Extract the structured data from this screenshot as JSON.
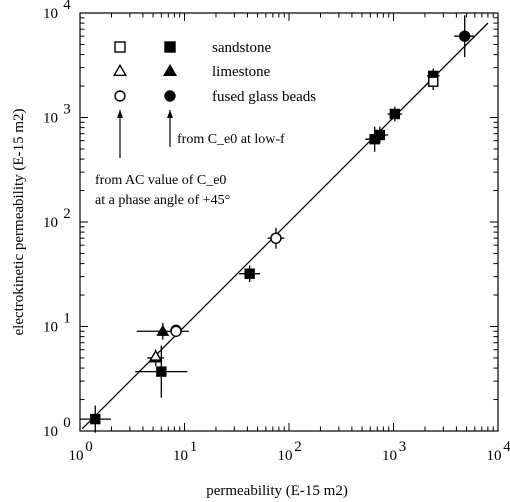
{
  "chart_data": {
    "type": "scatter",
    "xlabel": "permeability (E-15 m2)",
    "ylabel": "electrokinetic permeability (E-15 m2)",
    "xscale": "log",
    "yscale": "log",
    "xlim": [
      1,
      10000
    ],
    "ylim": [
      1,
      10000
    ],
    "ticks": [
      {
        "base": "10",
        "exp": "0"
      },
      {
        "base": "10",
        "exp": "1"
      },
      {
        "base": "10",
        "exp": "2"
      },
      {
        "base": "10",
        "exp": "3"
      },
      {
        "base": "10",
        "exp": "4"
      }
    ],
    "grid": false,
    "legend": {
      "position": "top-left",
      "entries": [
        {
          "label": "sandstone",
          "shape": "square"
        },
        {
          "label": "limestone",
          "shape": "triangle"
        },
        {
          "label": "fused glass beads",
          "shape": "circle"
        }
      ],
      "open_note": "from AC value of C_e0",
      "open_note2": "at a phase angle of +45°",
      "filled_note": "from C_e0 at low-f"
    },
    "fit_line": {
      "x": [
        1.05,
        8000
      ],
      "y": [
        1.05,
        8000
      ]
    },
    "series": [
      {
        "marker": "square",
        "filled": true,
        "points": [
          {
            "x": 1.4,
            "y": 1.3,
            "xerr": 0.15,
            "yerr": 0.13
          },
          {
            "x": 6.0,
            "y": 3.7,
            "xerr": 0.25,
            "yerr": 0.25
          },
          {
            "x": 42,
            "y": 32,
            "xerr": 0.1,
            "yerr": 0.08
          },
          {
            "x": 660,
            "y": 620,
            "xerr": 0.09,
            "yerr": 0.12
          },
          {
            "x": 740,
            "y": 680,
            "xerr": 0.08,
            "yerr": 0.08
          },
          {
            "x": 1030,
            "y": 1080,
            "xerr": 0.07,
            "yerr": 0.07
          },
          {
            "x": 2400,
            "y": 2500,
            "xerr": 0.06,
            "yerr": 0.07
          }
        ]
      },
      {
        "marker": "square",
        "filled": false,
        "points": [
          {
            "x": 2400,
            "y": 2200,
            "xerr": 0.0,
            "yerr": 0.08
          }
        ]
      },
      {
        "marker": "triangle",
        "filled": true,
        "points": [
          {
            "x": 5.3,
            "y": 5.0,
            "xerr": 0.08,
            "yerr": 0.08
          },
          {
            "x": 6.2,
            "y": 9.0,
            "xerr": 0.25,
            "yerr": 0.08
          }
        ]
      },
      {
        "marker": "triangle",
        "filled": false,
        "points": [
          {
            "x": 5.3,
            "y": 5.2,
            "xerr": 0.0,
            "yerr": 0.0
          }
        ]
      },
      {
        "marker": "circle",
        "filled": true,
        "points": [
          {
            "x": 8.3,
            "y": 9.2,
            "xerr": 0.05,
            "yerr": 0.05
          },
          {
            "x": 4800,
            "y": 6000,
            "xerr": 0.1,
            "yerr": 0.2
          }
        ]
      },
      {
        "marker": "circle",
        "filled": false,
        "points": [
          {
            "x": 75,
            "y": 70,
            "xerr": 0.08,
            "yerr": 0.1
          },
          {
            "x": 8.3,
            "y": 9.0,
            "xerr": 0.0,
            "yerr": 0.0
          }
        ]
      }
    ]
  }
}
